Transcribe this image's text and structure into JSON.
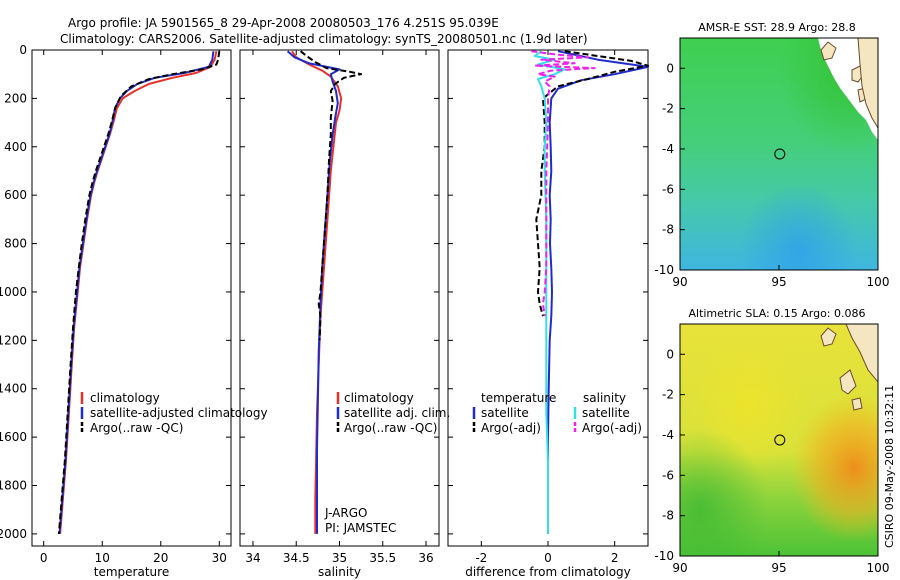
{
  "header": {
    "line1": "Argo profile: JA 5901565_8 29-Apr-2008 20080503_176 4.251S 95.039E",
    "line2": "Climatology: CARS2006. Satellite-adjusted climatology: synTS_20080501.nc (1.9d later)"
  },
  "credit": "CSIRO 09-May-2008 10:32:11",
  "colors": {
    "climatology": "#e8302a",
    "satellite": "#1f2ccc",
    "argo": "#000000",
    "sat_salinity": "#33e0e8",
    "argo_salinity": "#ee22ee"
  },
  "chart_data": [
    {
      "id": "temperature",
      "type": "line",
      "xlabel": "temperature",
      "ylabel": "",
      "xlim": [
        -2,
        32
      ],
      "ylim": [
        2050,
        0
      ],
      "xticks": [
        0,
        10,
        20,
        30
      ],
      "yticks": [
        0,
        200,
        400,
        600,
        800,
        1000,
        1200,
        1400,
        1600,
        1800,
        2000
      ],
      "legend": [
        "climatology",
        "satellite-adjusted climatology",
        "Argo(..raw -QC)"
      ],
      "series": [
        {
          "name": "climatology",
          "key": "climatology",
          "dash": "",
          "points": [
            [
              29.5,
              5
            ],
            [
              29.2,
              40
            ],
            [
              28.5,
              70
            ],
            [
              26,
              95
            ],
            [
              22,
              115
            ],
            [
              18,
              140
            ],
            [
              15.5,
              170
            ],
            [
              13.5,
              200
            ],
            [
              12.5,
              240
            ],
            [
              12,
              290
            ],
            [
              11.3,
              350
            ],
            [
              10.6,
              400
            ],
            [
              9.9,
              450
            ],
            [
              9.2,
              500
            ],
            [
              8.6,
              550
            ],
            [
              8.1,
              600
            ],
            [
              7.4,
              700
            ],
            [
              6.8,
              800
            ],
            [
              6.2,
              900
            ],
            [
              5.8,
              1000
            ],
            [
              5.2,
              1150
            ],
            [
              4.8,
              1300
            ],
            [
              4.3,
              1500
            ],
            [
              3.8,
              1700
            ],
            [
              3.3,
              1850
            ],
            [
              2.8,
              2000
            ]
          ]
        },
        {
          "name": "satellite-adjusted climatology",
          "key": "satellite",
          "dash": "",
          "points": [
            [
              29.0,
              5
            ],
            [
              28.8,
              40
            ],
            [
              28.2,
              70
            ],
            [
              24,
              95
            ],
            [
              19,
              115
            ],
            [
              16,
              140
            ],
            [
              14.2,
              170
            ],
            [
              13,
              200
            ],
            [
              12.2,
              240
            ],
            [
              11.8,
              290
            ],
            [
              11.2,
              350
            ],
            [
              10.5,
              400
            ],
            [
              9.8,
              450
            ],
            [
              9.1,
              500
            ],
            [
              8.5,
              550
            ],
            [
              8.0,
              600
            ],
            [
              7.3,
              700
            ],
            [
              6.7,
              800
            ],
            [
              6.1,
              900
            ],
            [
              5.7,
              1000
            ],
            [
              5.1,
              1150
            ],
            [
              4.7,
              1300
            ],
            [
              4.2,
              1500
            ],
            [
              3.7,
              1700
            ],
            [
              3.2,
              1850
            ],
            [
              2.7,
              2000
            ]
          ]
        },
        {
          "name": "Argo(..raw -QC)",
          "key": "argo",
          "dash": "6,3",
          "points": [
            [
              30,
              5
            ],
            [
              29.8,
              40
            ],
            [
              29.5,
              60
            ],
            [
              27,
              80
            ],
            [
              22,
              100
            ],
            [
              18,
              120
            ],
            [
              15,
              150
            ],
            [
              13.2,
              190
            ],
            [
              12.2,
              240
            ],
            [
              11.7,
              290
            ],
            [
              11,
              350
            ],
            [
              10.3,
              400
            ],
            [
              9.6,
              450
            ],
            [
              8.9,
              500
            ],
            [
              8.3,
              550
            ],
            [
              7.8,
              600
            ],
            [
              7.1,
              700
            ],
            [
              6.5,
              800
            ],
            [
              6.0,
              900
            ],
            [
              5.5,
              1000
            ],
            [
              5.0,
              1150
            ],
            [
              4.6,
              1300
            ],
            [
              4.1,
              1500
            ],
            [
              3.6,
              1700
            ],
            [
              3.1,
              1850
            ],
            [
              2.6,
              2000
            ]
          ]
        }
      ]
    },
    {
      "id": "salinity",
      "type": "line",
      "xlabel": "salinity",
      "xlim": [
        33.85,
        36.15
      ],
      "ylim": [
        2050,
        0
      ],
      "xticks": [
        34,
        34.5,
        35,
        35.5,
        36
      ],
      "yticks": [
        0,
        200,
        400,
        600,
        800,
        1000,
        1200,
        1400,
        1600,
        1800,
        2000
      ],
      "legend": [
        "climatology",
        "satellite adj. clim.",
        "Argo(..raw -QC)"
      ],
      "annotations": [
        "J-ARGO",
        "PI: JAMSTEC"
      ],
      "series": [
        {
          "name": "climatology",
          "key": "climatology",
          "dash": "",
          "points": [
            [
              34.45,
              5
            ],
            [
              34.5,
              30
            ],
            [
              34.65,
              60
            ],
            [
              34.8,
              85
            ],
            [
              34.9,
              110
            ],
            [
              34.98,
              150
            ],
            [
              35.02,
              200
            ],
            [
              35.0,
              250
            ],
            [
              34.96,
              300
            ],
            [
              34.93,
              400
            ],
            [
              34.9,
              500
            ],
            [
              34.87,
              650
            ],
            [
              34.84,
              800
            ],
            [
              34.81,
              950
            ],
            [
              34.78,
              1100
            ],
            [
              34.76,
              1300
            ],
            [
              34.74,
              1500
            ],
            [
              34.73,
              1700
            ],
            [
              34.72,
              1850
            ],
            [
              34.72,
              2000
            ]
          ]
        },
        {
          "name": "satellite adj. clim.",
          "key": "satellite",
          "dash": "",
          "points": [
            [
              34.4,
              5
            ],
            [
              34.48,
              30
            ],
            [
              34.65,
              55
            ],
            [
              35.0,
              80
            ],
            [
              34.9,
              100
            ],
            [
              34.92,
              130
            ],
            [
              34.96,
              170
            ],
            [
              34.98,
              220
            ],
            [
              34.95,
              280
            ],
            [
              34.92,
              350
            ],
            [
              34.89,
              450
            ],
            [
              34.86,
              600
            ],
            [
              34.83,
              750
            ],
            [
              34.8,
              900
            ],
            [
              34.78,
              1050
            ],
            [
              34.76,
              1250
            ],
            [
              34.75,
              1450
            ],
            [
              34.74,
              1650
            ],
            [
              34.74,
              1850
            ],
            [
              34.74,
              2000
            ]
          ]
        },
        {
          "name": "Argo(..raw -QC)",
          "key": "argo",
          "dash": "6,3",
          "points": [
            [
              34.55,
              5
            ],
            [
              34.62,
              25
            ],
            [
              34.72,
              50
            ],
            [
              34.85,
              75
            ],
            [
              35.12,
              90
            ],
            [
              35.25,
              100
            ],
            [
              35.05,
              115
            ],
            [
              34.95,
              140
            ],
            [
              34.9,
              170
            ],
            [
              34.92,
              210
            ],
            [
              34.9,
              280
            ],
            [
              34.9,
              350
            ],
            [
              34.88,
              450
            ],
            [
              34.86,
              600
            ],
            [
              34.84,
              700
            ],
            [
              34.82,
              800
            ],
            [
              34.8,
              900
            ],
            [
              34.78,
              1000
            ],
            [
              34.76,
              1050
            ],
            [
              34.78,
              1100
            ],
            [
              34.77,
              1200
            ]
          ]
        }
      ]
    },
    {
      "id": "difference",
      "type": "line",
      "xlabel": "difference from climatology",
      "xlim": [
        -3,
        3
      ],
      "ylim": [
        2050,
        0
      ],
      "xticks": [
        -2,
        0,
        2
      ],
      "yticks": [
        0,
        200,
        400,
        600,
        800,
        1000,
        1200,
        1400,
        1600,
        1800,
        2000
      ],
      "legend_temperature_title": "temperature",
      "legend_salinity_title": "salinity",
      "legend": [
        "satellite",
        "Argo(-adj)",
        "satellite",
        "Argo(-adj)"
      ],
      "series": [
        {
          "name": "temperature satellite",
          "key": "satellite",
          "dash": "",
          "points": [
            [
              0.3,
              5
            ],
            [
              1.5,
              40
            ],
            [
              3,
              70
            ],
            [
              2,
              100
            ],
            [
              1,
              125
            ],
            [
              0.3,
              160
            ],
            [
              0.1,
              200
            ],
            [
              0.05,
              300
            ],
            [
              0.08,
              400
            ],
            [
              0.1,
              500
            ],
            [
              0.05,
              600
            ],
            [
              0.08,
              700
            ],
            [
              0.06,
              800
            ],
            [
              0.1,
              900
            ],
            [
              0.12,
              1000
            ],
            [
              0.1,
              1100
            ],
            [
              0.05,
              1200
            ],
            [
              0.02,
              1400
            ],
            [
              0.0,
              1600
            ],
            [
              0.0,
              1800
            ],
            [
              0.0,
              2000
            ]
          ]
        },
        {
          "name": "temperature Argo(-adj)",
          "key": "argo",
          "dash": "6,3",
          "points": [
            [
              0.5,
              5
            ],
            [
              2.5,
              45
            ],
            [
              3,
              65
            ],
            [
              2,
              90
            ],
            [
              1.2,
              120
            ],
            [
              0.3,
              150
            ],
            [
              -0.15,
              200
            ],
            [
              -0.1,
              300
            ],
            [
              -0.1,
              400
            ],
            [
              -0.2,
              500
            ],
            [
              -0.2,
              600
            ],
            [
              -0.35,
              700
            ],
            [
              -0.3,
              800
            ],
            [
              -0.25,
              900
            ],
            [
              -0.3,
              1000
            ],
            [
              -0.25,
              1050
            ],
            [
              -0.15,
              1100
            ]
          ]
        },
        {
          "name": "salinity satellite",
          "key": "sat_salinity",
          "dash": "",
          "points": [
            [
              -0.2,
              5
            ],
            [
              -0.4,
              25
            ],
            [
              0.2,
              40
            ],
            [
              -0.3,
              60
            ],
            [
              0.5,
              80
            ],
            [
              0.2,
              100
            ],
            [
              -0.3,
              120
            ],
            [
              -0.2,
              150
            ],
            [
              -0.1,
              200
            ],
            [
              -0.05,
              300
            ],
            [
              -0.1,
              400
            ],
            [
              -0.1,
              500
            ],
            [
              -0.05,
              700
            ],
            [
              -0.05,
              900
            ],
            [
              -0.05,
              1100
            ],
            [
              -0.05,
              1300
            ],
            [
              -0.05,
              1500
            ],
            [
              0.0,
              1700
            ],
            [
              0.0,
              1900
            ],
            [
              0.0,
              2000
            ]
          ]
        },
        {
          "name": "salinity Argo(-adj)",
          "key": "argo_salinity",
          "dash": "6,3",
          "points": [
            [
              -0.5,
              5
            ],
            [
              0.3,
              20
            ],
            [
              1.2,
              30
            ],
            [
              -0.2,
              40
            ],
            [
              0.8,
              55
            ],
            [
              -0.4,
              65
            ],
            [
              1.4,
              75
            ],
            [
              0.1,
              85
            ],
            [
              -0.3,
              100
            ],
            [
              0.2,
              110
            ],
            [
              -0.1,
              130
            ],
            [
              0.05,
              150
            ],
            [
              0.0,
              200
            ],
            [
              0.0,
              300
            ],
            [
              -0.05,
              500
            ],
            [
              -0.05,
              700
            ],
            [
              -0.05,
              900
            ],
            [
              -0.1,
              1000
            ],
            [
              -0.15,
              1050
            ],
            [
              -0.1,
              1100
            ]
          ]
        }
      ]
    },
    {
      "id": "sst_map",
      "type": "heatmap",
      "title": "AMSR-E SST: 28.9  Argo: 28.8",
      "xlim": [
        90,
        100
      ],
      "ylim": [
        -10,
        1.5
      ],
      "xticks": [
        90,
        95,
        100
      ],
      "yticks": [
        0,
        -2,
        -4,
        -6,
        -8,
        -10
      ],
      "argo_position": [
        95.039,
        -4.251
      ]
    },
    {
      "id": "sla_map",
      "type": "heatmap",
      "title": "Altimetric SLA: 0.15  Argo: 0.086",
      "xlim": [
        90,
        100
      ],
      "ylim": [
        -10,
        1.5
      ],
      "xticks": [
        90,
        95,
        100
      ],
      "yticks": [
        0,
        -2,
        -4,
        -6,
        -8,
        -10
      ],
      "argo_position": [
        95.039,
        -4.251
      ]
    }
  ]
}
